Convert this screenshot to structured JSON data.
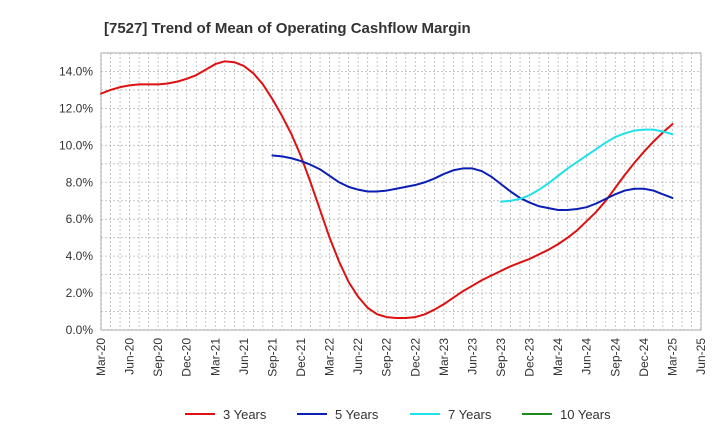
{
  "chart_data": {
    "type": "line",
    "title": "[7527]  Trend of Mean of Operating Cashflow Margin",
    "xlabel": "",
    "ylabel": "",
    "ylim": [
      0,
      15
    ],
    "y_ticks": [
      0,
      2,
      4,
      6,
      8,
      10,
      12,
      14
    ],
    "y_tick_labels": [
      "0.0%",
      "2.0%",
      "4.0%",
      "6.0%",
      "8.0%",
      "10.0%",
      "12.0%",
      "14.0%"
    ],
    "x_tick_labels": [
      "Mar-20",
      "Jun-20",
      "Sep-20",
      "Dec-20",
      "Mar-21",
      "Jun-21",
      "Sep-21",
      "Dec-21",
      "Mar-22",
      "Jun-22",
      "Sep-22",
      "Dec-22",
      "Mar-23",
      "Jun-23",
      "Sep-23",
      "Dec-23",
      "Mar-24",
      "Jun-24",
      "Sep-24",
      "Dec-24",
      "Mar-25",
      "Jun-25"
    ],
    "grid": true,
    "legend_position": "bottom",
    "series": [
      {
        "name": "3 Years",
        "color": "#dd1111",
        "x": [
          "Mar-20",
          "Apr-20",
          "May-20",
          "Jun-20",
          "Jul-20",
          "Aug-20",
          "Sep-20",
          "Oct-20",
          "Nov-20",
          "Dec-20",
          "Jan-21",
          "Feb-21",
          "Mar-21",
          "Apr-21",
          "May-21",
          "Jun-21",
          "Jul-21",
          "Aug-21",
          "Sep-21",
          "Oct-21",
          "Nov-21",
          "Dec-21",
          "Jan-22",
          "Feb-22",
          "Mar-22",
          "Apr-22",
          "May-22",
          "Jun-22",
          "Jul-22",
          "Aug-22",
          "Sep-22",
          "Oct-22",
          "Nov-22",
          "Dec-22",
          "Jan-23",
          "Feb-23",
          "Mar-23",
          "Apr-23",
          "May-23",
          "Jun-23",
          "Jul-23",
          "Aug-23",
          "Sep-23",
          "Oct-23",
          "Nov-23",
          "Dec-23",
          "Jan-24",
          "Feb-24",
          "Mar-24",
          "Apr-24",
          "May-24",
          "Jun-24",
          "Jul-24",
          "Aug-24",
          "Sep-24",
          "Oct-24",
          "Nov-24",
          "Dec-24",
          "Jan-25",
          "Feb-25",
          "Mar-25"
        ],
        "values": [
          12.8,
          13.0,
          13.15,
          13.25,
          13.3,
          13.3,
          13.3,
          13.35,
          13.45,
          13.6,
          13.8,
          14.1,
          14.4,
          14.55,
          14.5,
          14.3,
          13.9,
          13.3,
          12.5,
          11.6,
          10.6,
          9.4,
          8.0,
          6.5,
          5.0,
          3.7,
          2.6,
          1.8,
          1.2,
          0.85,
          0.7,
          0.65,
          0.65,
          0.7,
          0.85,
          1.1,
          1.4,
          1.75,
          2.1,
          2.4,
          2.7,
          2.95,
          3.2,
          3.45,
          3.65,
          3.85,
          4.1,
          4.35,
          4.65,
          5.0,
          5.4,
          5.9,
          6.4,
          7.0,
          7.7,
          8.4,
          9.05,
          9.65,
          10.2,
          10.7,
          11.15
        ]
      },
      {
        "name": "5 Years",
        "color": "#0b1fb5",
        "x": [
          "Sep-21",
          "Oct-21",
          "Nov-21",
          "Dec-21",
          "Jan-22",
          "Feb-22",
          "Mar-22",
          "Apr-22",
          "May-22",
          "Jun-22",
          "Jul-22",
          "Aug-22",
          "Sep-22",
          "Oct-22",
          "Nov-22",
          "Dec-22",
          "Jan-23",
          "Feb-23",
          "Mar-23",
          "Apr-23",
          "May-23",
          "Jun-23",
          "Jul-23",
          "Aug-23",
          "Sep-23",
          "Oct-23",
          "Nov-23",
          "Dec-23",
          "Jan-24",
          "Feb-24",
          "Mar-24",
          "Apr-24",
          "May-24",
          "Jun-24",
          "Jul-24",
          "Aug-24",
          "Sep-24",
          "Oct-24",
          "Nov-24",
          "Dec-24",
          "Jan-25",
          "Feb-25",
          "Mar-25"
        ],
        "values": [
          9.45,
          9.4,
          9.3,
          9.15,
          8.95,
          8.7,
          8.35,
          8.0,
          7.75,
          7.6,
          7.5,
          7.5,
          7.55,
          7.65,
          7.75,
          7.85,
          8.0,
          8.2,
          8.45,
          8.65,
          8.75,
          8.75,
          8.6,
          8.3,
          7.9,
          7.5,
          7.15,
          6.9,
          6.7,
          6.6,
          6.5,
          6.5,
          6.55,
          6.65,
          6.85,
          7.1,
          7.35,
          7.55,
          7.65,
          7.65,
          7.55,
          7.35,
          7.15
        ]
      },
      {
        "name": "7 Years",
        "color": "#22e0e8",
        "x": [
          "Sep-23",
          "Oct-23",
          "Nov-23",
          "Dec-23",
          "Jan-24",
          "Feb-24",
          "Mar-24",
          "Apr-24",
          "May-24",
          "Jun-24",
          "Jul-24",
          "Aug-24",
          "Sep-24",
          "Oct-24",
          "Nov-24",
          "Dec-24",
          "Jan-25",
          "Feb-25",
          "Mar-25"
        ],
        "values": [
          6.95,
          7.0,
          7.1,
          7.3,
          7.6,
          7.95,
          8.35,
          8.75,
          9.1,
          9.45,
          9.8,
          10.15,
          10.45,
          10.65,
          10.8,
          10.85,
          10.85,
          10.75,
          10.6
        ]
      },
      {
        "name": "10 Years",
        "color": "#1a8a1a",
        "x": [],
        "values": []
      }
    ]
  }
}
